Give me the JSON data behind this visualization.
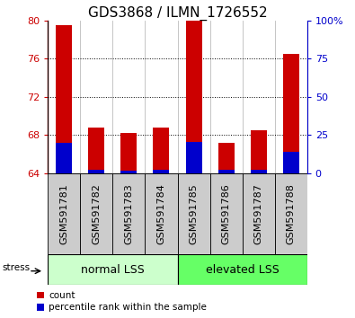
{
  "title": "GDS3868 / ILMN_1726552",
  "samples": [
    "GSM591781",
    "GSM591782",
    "GSM591783",
    "GSM591784",
    "GSM591785",
    "GSM591786",
    "GSM591787",
    "GSM591788"
  ],
  "red_tops": [
    79.5,
    68.8,
    68.2,
    68.8,
    80.0,
    67.2,
    68.5,
    76.5
  ],
  "blue_tops": [
    67.2,
    64.35,
    64.3,
    64.35,
    67.3,
    64.35,
    64.4,
    66.3
  ],
  "base": 64.0,
  "ylim": [
    64.0,
    80.0
  ],
  "yticks_left": [
    64,
    68,
    72,
    76,
    80
  ],
  "yticks_right": [
    0,
    25,
    50,
    75,
    100
  ],
  "yticks_right_labels": [
    "0",
    "25",
    "50",
    "75",
    "100%"
  ],
  "bar_width": 0.5,
  "red_color": "#cc0000",
  "blue_color": "#0000cc",
  "group1_label": "normal LSS",
  "group2_label": "elevated LSS",
  "group1_indices": [
    0,
    1,
    2,
    3
  ],
  "group2_indices": [
    4,
    5,
    6,
    7
  ],
  "group1_color": "#ccffcc",
  "group2_color": "#66ff66",
  "stress_label": "stress",
  "legend_red": "count",
  "legend_blue": "percentile rank within the sample",
  "grid_color": "#000000",
  "title_fontsize": 11,
  "tick_fontsize": 8,
  "label_fontsize": 9,
  "col_sep_color": "#bbbbbb",
  "label_box_color": "#cccccc"
}
